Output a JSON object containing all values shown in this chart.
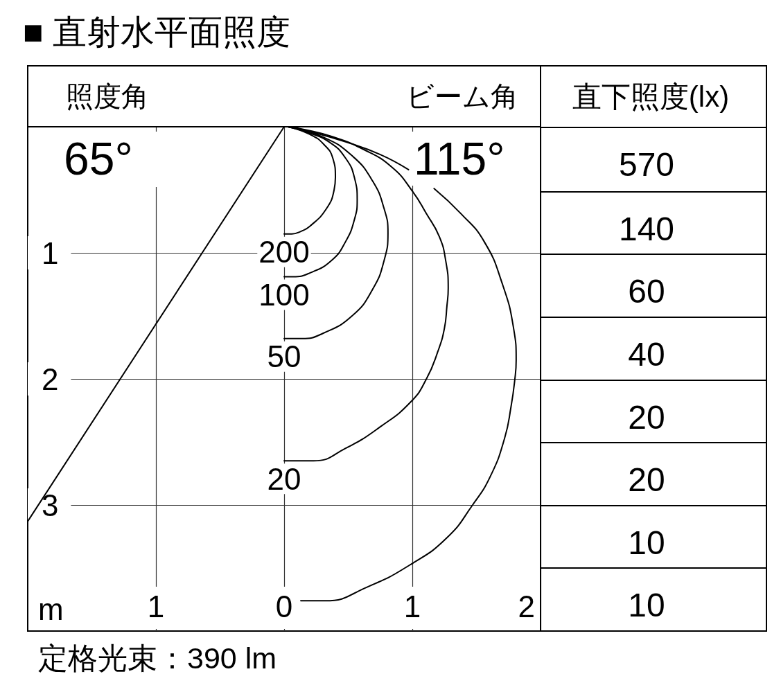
{
  "chart_data": [
    {
      "type": "line",
      "title": "■ 直射水平面照度",
      "xlabel": "m",
      "annotations": [
        "照度角",
        "ビーム角",
        "65°",
        "115°",
        "定格光束：390 lm"
      ],
      "xlim": [
        -2,
        2
      ],
      "xticks": [
        {
          "value": -1,
          "label": "1"
        },
        0,
        1,
        2
      ],
      "ylim": [
        4,
        0
      ],
      "yticks": [
        1,
        2,
        3
      ],
      "grid": true,
      "series": [
        {
          "name": "200",
          "color": "#000000",
          "x": [
            0,
            0.06,
            0.13,
            0.2,
            0.33,
            0.39,
            0.4,
            0.38,
            0.31,
            0.2,
            0.03
          ],
          "values": [
            0.85,
            0.85,
            0.83,
            0.79,
            0.65,
            0.5,
            0.4,
            0.25,
            0.14,
            0.06,
            0
          ]
        },
        {
          "name": "100",
          "color": "#000000",
          "x": [
            0,
            0.07,
            0.2,
            0.37,
            0.48,
            0.55,
            0.57,
            0.55,
            0.48,
            0.35,
            0.17,
            0.03
          ],
          "values": [
            1.19,
            1.19,
            1.16,
            1.06,
            0.91,
            0.73,
            0.58,
            0.41,
            0.25,
            0.12,
            0.04,
            0
          ]
        },
        {
          "name": "50",
          "color": "#000000",
          "x": [
            0,
            0.14,
            0.3,
            0.53,
            0.69,
            0.78,
            0.81,
            0.78,
            0.69,
            0.53,
            0.3,
            0.03
          ],
          "values": [
            1.68,
            1.68,
            1.64,
            1.5,
            1.29,
            1.06,
            0.84,
            0.65,
            0.43,
            0.23,
            0.08,
            0
          ]
        },
        {
          "name": "20",
          "color": "#000000",
          "x": [
            0,
            0.23,
            0.48,
            0.75,
            0.99,
            1.11,
            1.2,
            1.25,
            1.27,
            1.28,
            1.26,
            1.21,
            1.11,
            1.0,
            0.84,
            0.62,
            0.38,
            0.15,
            0.03
          ],
          "values": [
            2.65,
            2.65,
            2.55,
            2.38,
            2.18,
            2.0,
            1.78,
            1.6,
            1.42,
            1.28,
            1.06,
            0.87,
            0.69,
            0.51,
            0.32,
            0.18,
            0.08,
            0.02,
            0
          ]
        },
        {
          "color": "#000000",
          "x": [
            0.13,
            0.32,
            0.65,
            0.99,
            1.27,
            1.47,
            1.61,
            1.72,
            1.77,
            1.8,
            1.81,
            1.79,
            1.7,
            1.56,
            1.38,
            1.17,
            1.07,
            0.97,
            0.75,
            0.48,
            0.21,
            0.03
          ],
          "values": [
            3.76,
            3.76,
            3.65,
            3.47,
            3.26,
            3.0,
            2.77,
            2.47,
            2.22,
            2.0,
            1.85,
            1.6,
            1.24,
            0.91,
            0.69,
            0.49,
            null,
            0.34,
            0.22,
            0.12,
            0.04,
            0
          ]
        },
        {
          "color": "#000000",
          "x": [
            0,
            -2
          ],
          "values": [
            0,
            3.13
          ]
        }
      ]
    },
    {
      "type": "other",
      "title": "直下照度(lx)",
      "annotations": [
        "570",
        "140",
        "60",
        "40",
        "20",
        "20",
        "10",
        "10"
      ]
    }
  ]
}
